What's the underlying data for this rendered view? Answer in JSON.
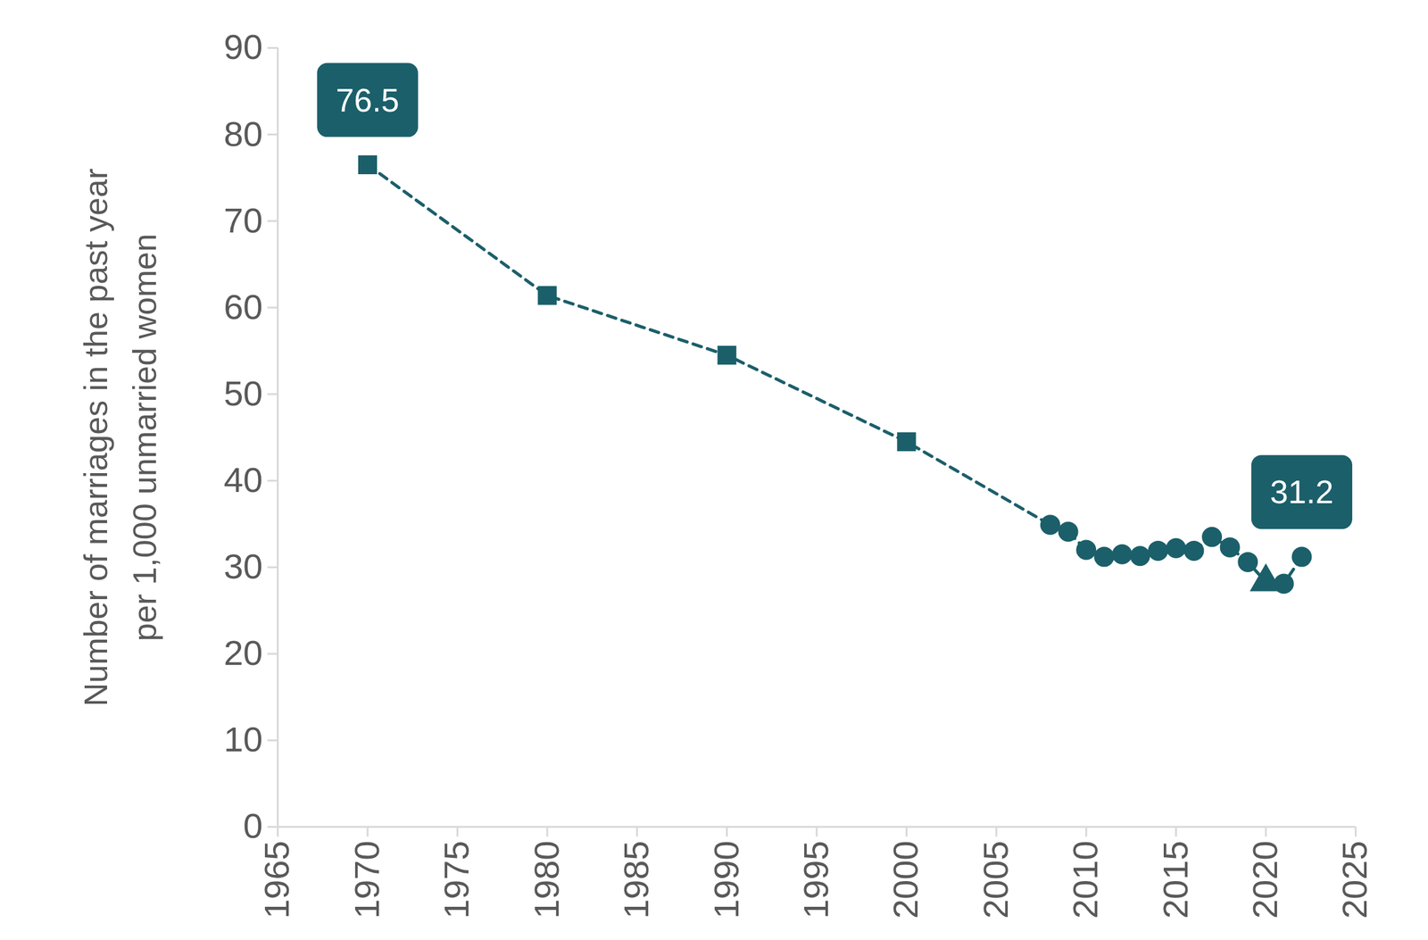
{
  "chart_data": {
    "type": "line",
    "y_label": "Number of marriages in the past year\nper 1,000 unmarried women",
    "x": [
      1970,
      1980,
      1990,
      2000,
      2008,
      2009,
      2010,
      2011,
      2012,
      2013,
      2014,
      2015,
      2016,
      2017,
      2018,
      2019,
      2020,
      2021,
      2022
    ],
    "series": [
      {
        "type": "line",
        "line_style": "dashed",
        "marker": "none",
        "color": "#1b5f6a",
        "values": [
          76.5,
          61.4,
          54.5,
          44.5,
          34.9,
          34.1,
          32.0,
          31.2,
          31.5,
          31.3,
          31.9,
          32.2,
          31.9,
          33.5,
          32.3,
          30.6,
          28.3,
          28.1,
          31.2
        ]
      },
      {
        "type": "scatter",
        "marker": "square",
        "color": "#1b5f6a",
        "values": [
          76.5,
          61.4,
          54.5,
          44.5,
          null,
          null,
          null,
          null,
          null,
          null,
          null,
          null,
          null,
          null,
          null,
          null,
          null,
          null,
          null
        ]
      },
      {
        "type": "scatter",
        "marker": "circle",
        "color": "#1b5f6a",
        "values": [
          null,
          null,
          null,
          null,
          34.9,
          34.1,
          32.0,
          31.2,
          31.5,
          31.3,
          31.9,
          32.2,
          31.9,
          33.5,
          32.3,
          30.6,
          null,
          28.1,
          31.2
        ]
      },
      {
        "type": "scatter",
        "marker": "triangle",
        "color": "#1b5f6a",
        "values": [
          null,
          null,
          null,
          null,
          null,
          null,
          null,
          null,
          null,
          null,
          null,
          null,
          null,
          null,
          null,
          null,
          28.3,
          null,
          null
        ]
      }
    ],
    "xlim": [
      1965,
      2025
    ],
    "xticks": [
      1965,
      1970,
      1975,
      1980,
      1985,
      1990,
      1995,
      2000,
      2005,
      2010,
      2015,
      2020,
      2025
    ],
    "ylim": [
      0,
      90
    ],
    "yticks": [
      0,
      10,
      20,
      30,
      40,
      50,
      60,
      70,
      80,
      90
    ],
    "grid": false,
    "annotations": [
      {
        "x": 1970,
        "y": 76.5,
        "text": "76.5"
      },
      {
        "x": 2022,
        "y": 31.2,
        "text": "31.2"
      }
    ]
  }
}
